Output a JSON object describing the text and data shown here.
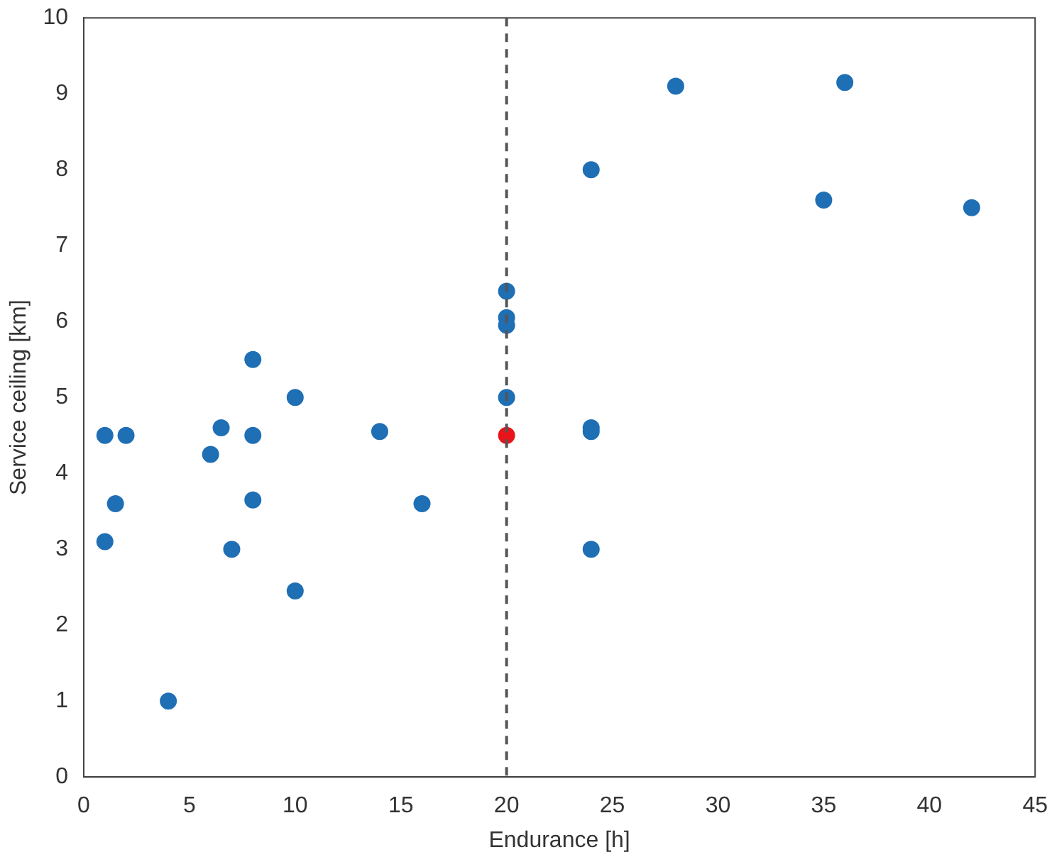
{
  "chart_data": {
    "type": "scatter",
    "xlabel": "Endurance [h]",
    "ylabel": "Service ceiling [km]",
    "xlim": [
      0,
      45
    ],
    "xticks": [
      0,
      5,
      10,
      15,
      20,
      25,
      30,
      35,
      40,
      45
    ],
    "ylim": [
      0,
      10
    ],
    "yticks": [
      0,
      1,
      2,
      3,
      4,
      5,
      6,
      7,
      8,
      9,
      10
    ],
    "grid": false,
    "legend": false,
    "marker": "circle",
    "series": [
      {
        "color": "#1f6fb5",
        "x": [
          1,
          1,
          1.5,
          2,
          4,
          6,
          6.5,
          7,
          8,
          8,
          8,
          10,
          10,
          14,
          16,
          20,
          20,
          20,
          20,
          24,
          24,
          24,
          24,
          28,
          35,
          36,
          42
        ],
        "values": [
          4.5,
          3.1,
          3.6,
          4.5,
          1.0,
          4.25,
          4.6,
          3.0,
          5.5,
          4.5,
          3.65,
          5.0,
          2.45,
          4.55,
          3.6,
          6.4,
          6.05,
          5.95,
          5.0,
          8.0,
          4.6,
          4.55,
          3.0,
          9.1,
          7.6,
          9.15,
          7.5
        ]
      },
      {
        "color": "#e8141a",
        "x": [
          20
        ],
        "values": [
          4.5
        ]
      }
    ],
    "ref_lines": [
      {
        "axis": "x",
        "value": 20,
        "color": "#555555",
        "line_style": "dashed"
      }
    ]
  }
}
